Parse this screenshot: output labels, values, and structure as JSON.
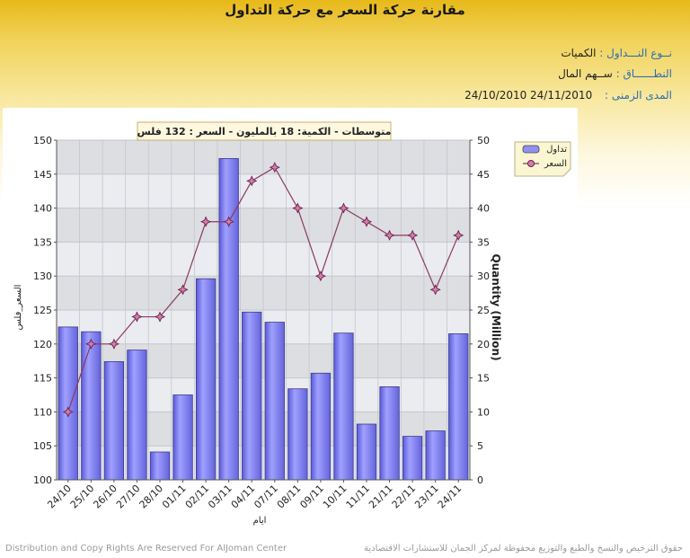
{
  "page": {
    "title": "مقارنة حركة السعر مع حركة التداول",
    "trade_type_label": "نــوع النـــداول :",
    "trade_type_value": "الكميات",
    "scope_label": "النطــــــاق :",
    "scope_value": "ســهم المال",
    "period_label": "المدى الزمنى :",
    "period_value": "24/10/2010 24/11/2010",
    "footer_left": "Distribution and Copy Rights Are Reserved For AlJoman Center",
    "footer_right": "حقوق الترخيص والنسخ والطبع والتوزيع محفوظة لمركز الجمان للاستشارات الاقتصادية"
  },
  "chart_data": {
    "type": "bar",
    "title": "متوسطات - الكمية: 18 بالمليون  - السعر : 132 فلس",
    "xlabel": "ايام",
    "ylabel_left": "السعر_فلس",
    "ylabel_right": "Quantity (Million)",
    "categories": [
      "24/10",
      "25/10",
      "26/10",
      "27/10",
      "28/10",
      "01/11",
      "02/11",
      "03/11",
      "04/11",
      "07/11",
      "08/11",
      "09/11",
      "10/11",
      "11/11",
      "21/11",
      "22/11",
      "23/11",
      "24/11"
    ],
    "y_left": {
      "min": 100,
      "max": 150,
      "step": 5,
      "ticks": [
        "100",
        "105",
        "110",
        "115",
        "120",
        "125",
        "130",
        "135",
        "140",
        "145",
        "150"
      ]
    },
    "y_right": {
      "min": 0,
      "max": 50,
      "step": 5,
      "ticks": [
        "0",
        "5",
        "10",
        "15",
        "20",
        "25",
        "30",
        "35",
        "40",
        "45",
        "50"
      ]
    },
    "grid": true,
    "legend_position": "top-right",
    "series": [
      {
        "name": "تداول",
        "type": "bar",
        "axis": "right",
        "color": "#8080ee",
        "values": [
          22.5,
          21.8,
          17.4,
          19.1,
          4.1,
          12.5,
          29.6,
          47.3,
          24.7,
          23.2,
          13.4,
          15.7,
          21.6,
          8.2,
          13.7,
          6.4,
          7.2,
          21.5
        ]
      },
      {
        "name": "السعر",
        "type": "line",
        "axis": "left",
        "color": "#8b3a5e",
        "values": [
          110,
          120,
          120,
          124,
          124,
          128,
          138,
          138,
          144,
          146,
          140,
          130,
          140,
          138,
          136,
          136,
          128,
          136
        ]
      }
    ]
  }
}
